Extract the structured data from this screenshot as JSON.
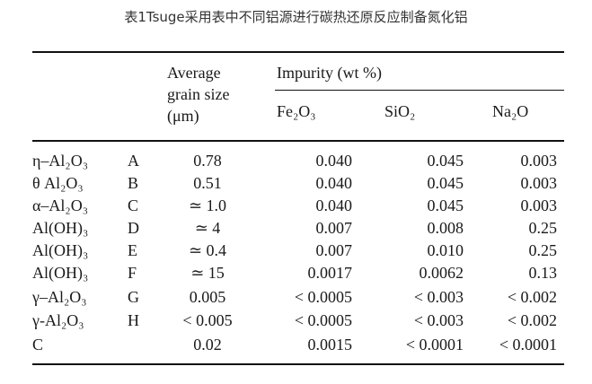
{
  "caption": "表1Tsuge采用表中不同铝源进行碳热还原反应制备氮化铝",
  "headers": {
    "grain_line1": "Average",
    "grain_line2": "grain size",
    "grain_line3": "(μm)",
    "impurity": "Impurity (wt %)",
    "fe2o3": "Fe₂O₃",
    "sio2": "SiO₂",
    "na2o": "Na₂O"
  },
  "rows": [
    {
      "material": "η–Al₂O₃",
      "code": "A",
      "grain": "0.78",
      "fe2o3": "0.040",
      "sio2": "0.045",
      "na2o": "0.003"
    },
    {
      "material": "θ Al₂O₃",
      "code": "B",
      "grain": "0.51",
      "fe2o3": "0.040",
      "sio2": "0.045",
      "na2o": "0.003"
    },
    {
      "material": "α–Al₂O₃",
      "code": "C",
      "grain": "≃ 1.0",
      "fe2o3": "0.040",
      "sio2": "0.045",
      "na2o": "0.003"
    },
    {
      "material": "Al(OH)₃",
      "code": "D",
      "grain": "≃ 4",
      "fe2o3": "0.007",
      "sio2": "0.008",
      "na2o": "0.25"
    },
    {
      "material": "Al(OH)₃",
      "code": "E",
      "grain": "≃ 0.4",
      "fe2o3": "0.007",
      "sio2": "0.010",
      "na2o": "0.25"
    },
    {
      "material": "Al(OH)₃",
      "code": "F",
      "grain": "≃ 15",
      "fe2o3": "0.0017",
      "sio2": "0.0062",
      "na2o": "0.13"
    },
    {
      "material": "γ–Al₂O₃",
      "code": "G",
      "grain": "0.005",
      "fe2o3": "< 0.0005",
      "sio2": "< 0.003",
      "na2o": "< 0.002"
    },
    {
      "material": "γ-Al₂O₃",
      "code": "H",
      "grain": "< 0.005",
      "fe2o3": "< 0.0005",
      "sio2": "< 0.003",
      "na2o": "< 0.002"
    },
    {
      "material": "C",
      "code": "",
      "grain": "0.02",
      "fe2o3": "0.0015",
      "sio2": "< 0.0001",
      "na2o": "< 0.0001"
    }
  ]
}
